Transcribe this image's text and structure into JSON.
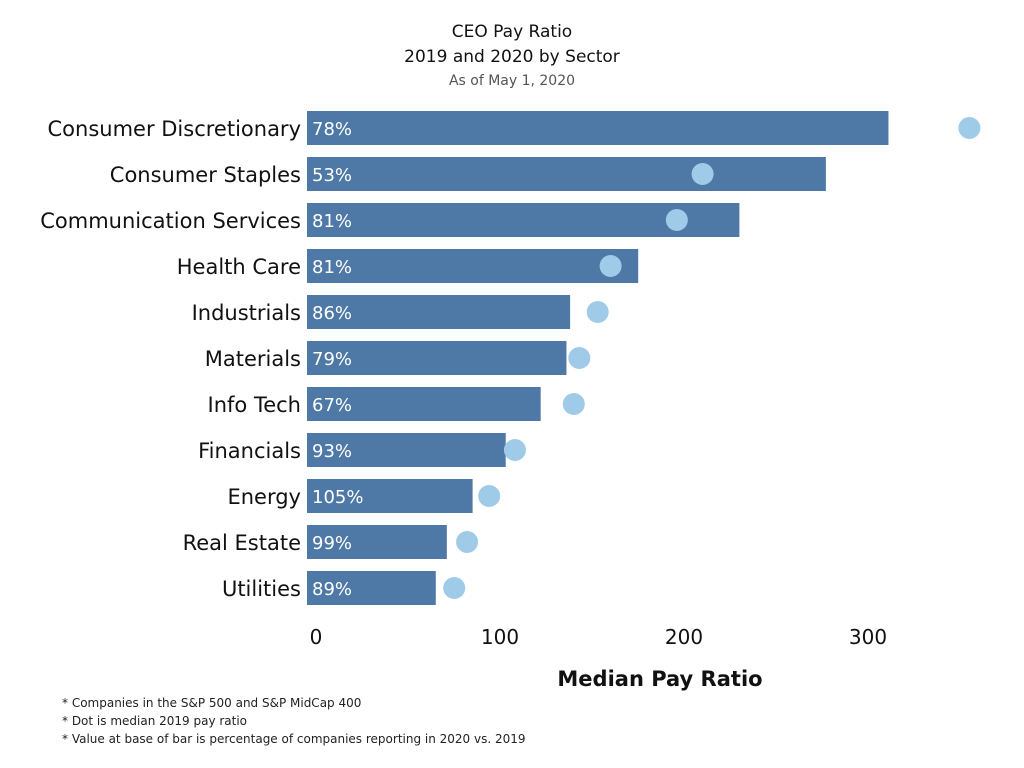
{
  "chart_data": {
    "type": "bar",
    "title": "CEO Pay Ratio",
    "subtitle": "2019 and 2020 by Sector",
    "subtitle2": "As of May 1, 2020",
    "xlabel": "Median Pay Ratio",
    "ylabel": "",
    "xlim": [
      0,
      370
    ],
    "x_ticks": [
      0,
      100,
      200,
      300
    ],
    "orientation": "horizontal",
    "categories": [
      "Consumer Discretionary",
      "Consumer Staples",
      "Communication Services",
      "Health Care",
      "Industrials",
      "Materials",
      "Info Tech",
      "Financials",
      "Energy",
      "Real Estate",
      "Utilities"
    ],
    "series": [
      {
        "name": "",
        "values": [
          316,
          282,
          235,
          180,
          143,
          141,
          127,
          108,
          90,
          76,
          70
        ],
        "color": "#4e79a7"
      },
      {
        "name": "",
        "values": [
          360,
          215,
          201,
          165,
          158,
          148,
          145,
          113,
          99,
          87,
          80
        ],
        "color": "#a0cbe8"
      }
    ],
    "bar_labels": [
      "78%",
      "53%",
      "81%",
      "81%",
      "86%",
      "79%",
      "67%",
      "93%",
      "105%",
      "99%",
      "89%"
    ],
    "grid": false,
    "legend": "none"
  },
  "footnotes": [
    "* Companies in the S&P 500 and S&P MidCap 400",
    "* Dot is median 2019 pay ratio",
    "* Value at base of bar is percentage of companies reporting in 2020 vs. 2019"
  ]
}
